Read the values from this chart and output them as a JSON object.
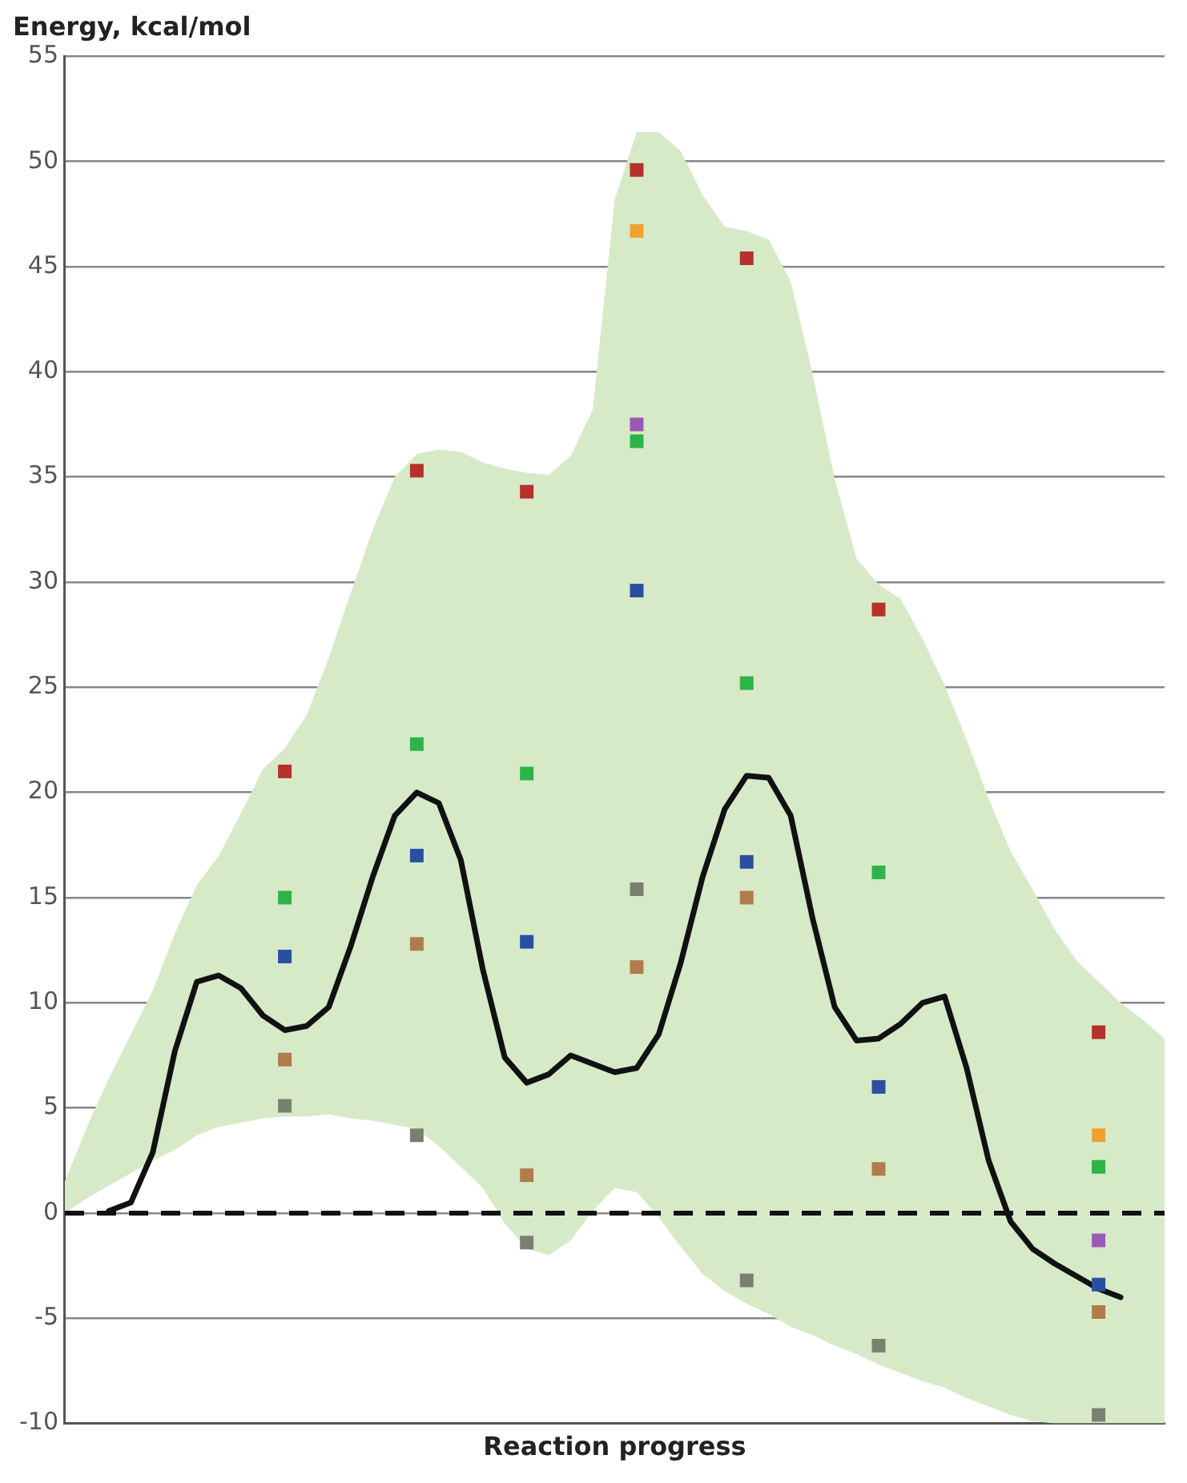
{
  "chart_data": {
    "type": "scatter",
    "ylabel": "Energy, kcal/mol",
    "xlabel": "Reaction progress",
    "ylim": [
      -10,
      55
    ],
    "yticks": [
      -10,
      -5,
      0,
      5,
      10,
      15,
      20,
      25,
      30,
      35,
      40,
      45,
      50,
      55
    ],
    "tick_labels": "y",
    "grid": "y",
    "legend": false,
    "marker": "none",
    "categories": [
      null,
      null,
      null,
      null,
      null,
      null,
      null,
      null,
      null,
      null,
      null,
      null,
      null,
      null,
      null,
      null,
      null,
      null,
      null,
      null,
      null,
      null,
      null,
      null,
      null,
      null,
      null,
      null,
      null,
      null,
      null,
      null,
      null,
      null,
      null,
      null,
      null,
      null,
      null,
      null,
      null,
      null,
      null,
      null,
      null,
      null,
      null,
      null,
      null,
      null,
      null
    ],
    "ref_lines": [
      {
        "axis": "y",
        "value": 0,
        "color": "#111111",
        "line_style": "dashed"
      }
    ],
    "series": [
      {
        "type": "line",
        "color": "#111111",
        "values": [
          null,
          null,
          0.1,
          0.5,
          2.9,
          7.7,
          11.0,
          11.3,
          10.7,
          9.4,
          8.7,
          8.9,
          9.8,
          12.7,
          16.0,
          18.9,
          20.0,
          19.5,
          16.8,
          11.6,
          7.4,
          6.2,
          6.6,
          7.5,
          7.1,
          6.7,
          6.9,
          8.5,
          11.9,
          16.0,
          19.2,
          20.8,
          20.7,
          18.9,
          14.0,
          9.8,
          8.2,
          8.3,
          9.0,
          10.0,
          10.3,
          6.9,
          2.5,
          -0.4,
          -1.7,
          -2.4,
          -3.0,
          -3.6,
          -4.0,
          null,
          null
        ],
        "upper": [
          1.5,
          4.1,
          6.4,
          8.5,
          10.6,
          13.3,
          15.6,
          17.0,
          19.0,
          21.1,
          22.1,
          23.7,
          26.4,
          29.5,
          32.5,
          35.0,
          36.1,
          36.3,
          36.2,
          35.7,
          35.4,
          35.2,
          35.1,
          36.0,
          38.2,
          48.2,
          51.4,
          51.4,
          50.5,
          48.4,
          46.9,
          46.7,
          46.3,
          44.3,
          39.9,
          34.9,
          31.1,
          29.9,
          29.2,
          27.3,
          25.1,
          22.5,
          19.7,
          17.2,
          15.4,
          13.5,
          12.0,
          11.0,
          10.0,
          9.2,
          8.3
        ],
        "lower": [
          0,
          0.7,
          1.3,
          1.9,
          2.5,
          3.0,
          3.7,
          4.1,
          4.3,
          4.5,
          4.6,
          4.6,
          4.7,
          4.5,
          4.4,
          4.2,
          4.0,
          3.2,
          2.2,
          1.2,
          -0.5,
          -1.7,
          -2.0,
          -1.3,
          0.1,
          1.2,
          1.0,
          -0.2,
          -1.6,
          -2.9,
          -3.7,
          -4.3,
          -4.8,
          -5.4,
          -5.8,
          -6.3,
          -6.7,
          -7.2,
          -7.6,
          -8.0,
          -8.3,
          -8.8,
          -9.2,
          -9.6,
          -9.9,
          -10,
          -10,
          -10,
          -10,
          -10,
          -10
        ]
      },
      {
        "color": "#b5312a",
        "marker": "square",
        "values": [
          null,
          null,
          null,
          null,
          null,
          null,
          null,
          null,
          null,
          null,
          21.0,
          null,
          null,
          null,
          null,
          null,
          35.3,
          null,
          null,
          null,
          null,
          34.3,
          null,
          null,
          null,
          null,
          49.6,
          null,
          null,
          null,
          null,
          45.4,
          null,
          null,
          null,
          null,
          null,
          28.7,
          null,
          null,
          null,
          null,
          null,
          null,
          null,
          null,
          null,
          8.6,
          null,
          null,
          null
        ]
      },
      {
        "color": "#f0a030",
        "marker": "square",
        "values": [
          null,
          null,
          null,
          null,
          null,
          null,
          null,
          null,
          null,
          null,
          null,
          null,
          null,
          null,
          null,
          null,
          null,
          null,
          null,
          null,
          null,
          null,
          null,
          null,
          null,
          null,
          46.7,
          null,
          null,
          null,
          null,
          null,
          null,
          null,
          null,
          null,
          null,
          null,
          null,
          null,
          null,
          null,
          null,
          null,
          null,
          null,
          null,
          3.7,
          null,
          null,
          null
        ]
      },
      {
        "color": "#9b59b6",
        "marker": "square",
        "values": [
          null,
          null,
          null,
          null,
          null,
          null,
          null,
          null,
          null,
          null,
          null,
          null,
          null,
          null,
          null,
          null,
          null,
          null,
          null,
          null,
          null,
          null,
          null,
          null,
          null,
          null,
          37.5,
          null,
          null,
          null,
          null,
          null,
          null,
          null,
          null,
          null,
          null,
          null,
          null,
          null,
          null,
          null,
          null,
          null,
          null,
          null,
          null,
          -1.3,
          null,
          null,
          null
        ]
      },
      {
        "color": "#2db34a",
        "marker": "square",
        "values": [
          null,
          null,
          null,
          null,
          null,
          null,
          null,
          null,
          null,
          null,
          15.0,
          null,
          null,
          null,
          null,
          null,
          22.3,
          null,
          null,
          null,
          null,
          20.9,
          null,
          null,
          null,
          null,
          36.7,
          null,
          null,
          null,
          null,
          25.2,
          null,
          null,
          null,
          null,
          null,
          16.2,
          null,
          null,
          null,
          null,
          null,
          null,
          null,
          null,
          null,
          2.2,
          null,
          null,
          null
        ]
      },
      {
        "color": "#2a4fa0",
        "marker": "square",
        "values": [
          null,
          null,
          null,
          null,
          null,
          null,
          null,
          null,
          null,
          null,
          12.2,
          null,
          null,
          null,
          null,
          null,
          17.0,
          null,
          null,
          null,
          null,
          12.9,
          null,
          null,
          null,
          null,
          29.6,
          null,
          null,
          null,
          null,
          16.7,
          null,
          null,
          null,
          null,
          null,
          6.0,
          null,
          null,
          null,
          null,
          null,
          null,
          null,
          null,
          null,
          -3.4,
          null,
          null,
          null
        ]
      },
      {
        "color": "#b07c4a",
        "marker": "square",
        "values": [
          null,
          null,
          null,
          null,
          null,
          null,
          null,
          null,
          null,
          null,
          7.3,
          null,
          null,
          null,
          null,
          null,
          12.8,
          null,
          null,
          null,
          null,
          1.8,
          null,
          null,
          null,
          null,
          11.7,
          null,
          null,
          null,
          null,
          15.0,
          null,
          null,
          null,
          null,
          null,
          2.1,
          null,
          null,
          null,
          null,
          null,
          null,
          null,
          null,
          null,
          -4.7,
          null,
          null,
          null
        ]
      },
      {
        "color": "#7a8070",
        "marker": "square",
        "values": [
          null,
          null,
          null,
          null,
          null,
          null,
          null,
          null,
          null,
          null,
          5.1,
          null,
          null,
          null,
          null,
          null,
          3.7,
          null,
          null,
          null,
          null,
          -1.4,
          null,
          null,
          null,
          null,
          15.4,
          null,
          null,
          null,
          null,
          -3.2,
          null,
          null,
          null,
          null,
          null,
          -6.3,
          null,
          null,
          null,
          null,
          null,
          null,
          null,
          null,
          null,
          -9.6,
          null,
          null,
          null
        ]
      }
    ]
  }
}
